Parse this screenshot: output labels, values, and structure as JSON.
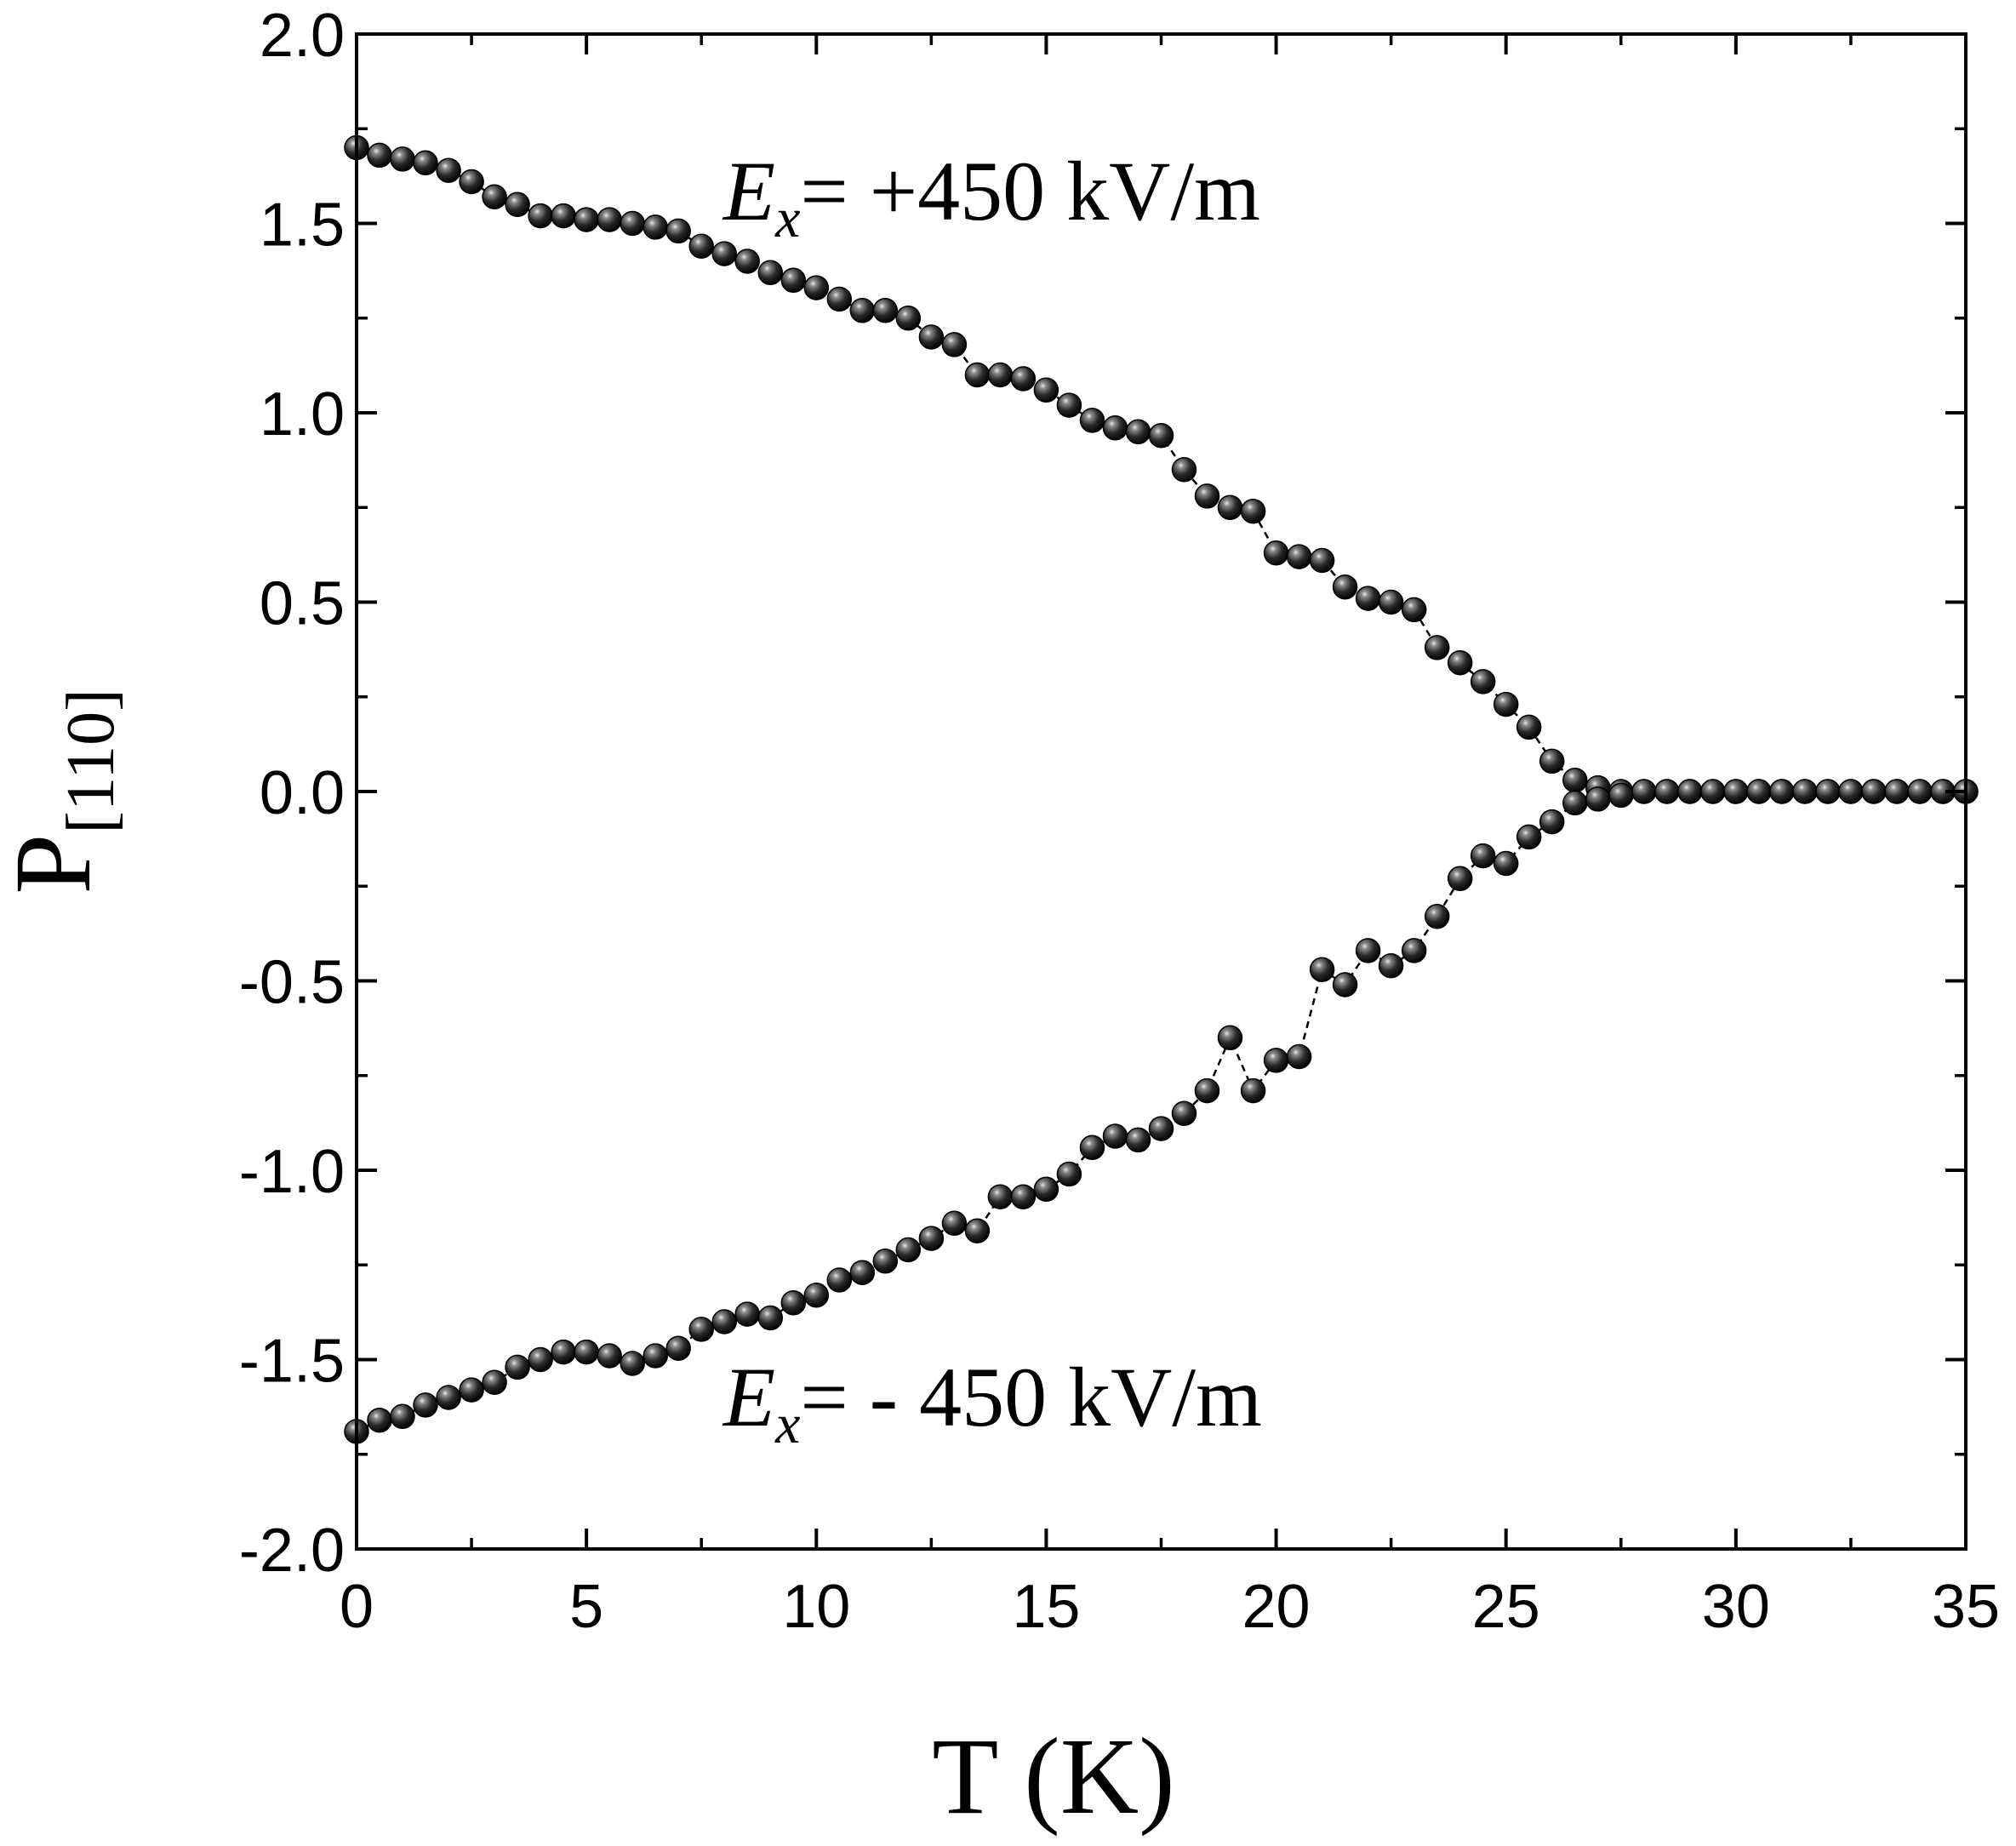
{
  "chart_data": {
    "type": "scatter",
    "xlabel": "T (K)",
    "ylabel": "P",
    "ylabel_subscript": "[110]",
    "xlim": [
      0,
      35
    ],
    "ylim": [
      -2.0,
      2.0
    ],
    "xticks": [
      0,
      5,
      10,
      15,
      20,
      25,
      30,
      35
    ],
    "xtick_labels": [
      "0",
      "5",
      "10",
      "15",
      "20",
      "25",
      "30",
      "35"
    ],
    "yticks": [
      -2.0,
      -1.5,
      -1.0,
      -0.5,
      0.0,
      0.5,
      1.0,
      1.5,
      2.0
    ],
    "ytick_labels": [
      "-2.0",
      "-1.5",
      "-1.0",
      "-0.5",
      "0.0",
      "0.5",
      "1.0",
      "1.5",
      "2.0"
    ],
    "grid": false,
    "marker": "sphere",
    "marker_color": "#111111",
    "line_style": "dashed",
    "annotations": [
      {
        "series": "positive",
        "symbol": "E",
        "subscript": "x",
        "text": "= +450 kV/m",
        "x": 8.0,
        "y": 1.5
      },
      {
        "series": "negative",
        "symbol": "E",
        "subscript": "x",
        "text": "= - 450 kV/m",
        "x": 7.9,
        "y": -1.75
      }
    ],
    "series": [
      {
        "name": "E_x = +450 kV/m",
        "x": [
          0,
          0.5,
          1,
          1.5,
          2,
          2.5,
          3,
          3.5,
          4,
          4.5,
          5,
          5.5,
          6,
          6.5,
          7,
          7.5,
          8,
          8.5,
          9,
          9.5,
          10,
          10.5,
          11,
          11.5,
          12,
          12.5,
          13,
          13.5,
          14,
          14.5,
          15,
          15.5,
          16,
          16.5,
          17,
          17.5,
          18,
          18.5,
          19,
          19.5,
          20,
          20.5,
          21,
          21.5,
          22,
          22.5,
          23,
          23.5,
          24,
          24.5,
          25,
          25.5,
          26,
          26.5,
          27,
          27.5,
          28,
          28.5,
          29,
          29.5,
          30,
          30.5,
          31,
          31.5,
          32,
          32.5,
          33,
          33.5,
          34,
          34.5,
          35
        ],
        "y": [
          1.7,
          1.68,
          1.67,
          1.66,
          1.64,
          1.61,
          1.57,
          1.55,
          1.52,
          1.52,
          1.51,
          1.51,
          1.5,
          1.49,
          1.48,
          1.44,
          1.42,
          1.4,
          1.37,
          1.35,
          1.33,
          1.3,
          1.27,
          1.27,
          1.25,
          1.2,
          1.18,
          1.1,
          1.1,
          1.09,
          1.06,
          1.02,
          0.98,
          0.96,
          0.95,
          0.94,
          0.85,
          0.78,
          0.75,
          0.74,
          0.63,
          0.62,
          0.61,
          0.54,
          0.51,
          0.5,
          0.48,
          0.38,
          0.34,
          0.29,
          0.23,
          0.17,
          0.08,
          0.03,
          0.01,
          0.0,
          0.0,
          0.0,
          0.0,
          0.0,
          0.0,
          0.0,
          0.0,
          0.0,
          0.0,
          0.0,
          0.0,
          0.0,
          0.0,
          0.0,
          0.0
        ]
      },
      {
        "name": "E_x = - 450 kV/m",
        "x": [
          0,
          0.5,
          1,
          1.5,
          2,
          2.5,
          3,
          3.5,
          4,
          4.5,
          5,
          5.5,
          6,
          6.5,
          7,
          7.5,
          8,
          8.5,
          9,
          9.5,
          10,
          10.5,
          11,
          11.5,
          12,
          12.5,
          13,
          13.5,
          14,
          14.5,
          15,
          15.5,
          16,
          16.5,
          17,
          17.5,
          18,
          18.5,
          19,
          19.5,
          20,
          20.5,
          21,
          21.5,
          22,
          22.5,
          23,
          23.5,
          24,
          24.5,
          25,
          25.5,
          26,
          26.5,
          27,
          27.5,
          28,
          28.5,
          29,
          29.5,
          30,
          30.5,
          31,
          31.5,
          32,
          32.5,
          33,
          33.5,
          34,
          34.5,
          35
        ],
        "y": [
          -1.69,
          -1.66,
          -1.65,
          -1.62,
          -1.6,
          -1.58,
          -1.56,
          -1.52,
          -1.5,
          -1.48,
          -1.48,
          -1.49,
          -1.51,
          -1.49,
          -1.47,
          -1.42,
          -1.4,
          -1.38,
          -1.39,
          -1.35,
          -1.33,
          -1.29,
          -1.27,
          -1.24,
          -1.21,
          -1.18,
          -1.14,
          -1.16,
          -1.07,
          -1.07,
          -1.05,
          -1.01,
          -0.94,
          -0.91,
          -0.92,
          -0.89,
          -0.85,
          -0.79,
          -0.65,
          -0.79,
          -0.71,
          -0.7,
          -0.47,
          -0.51,
          -0.42,
          -0.46,
          -0.42,
          -0.33,
          -0.23,
          -0.17,
          -0.19,
          -0.12,
          -0.08,
          -0.03,
          -0.02,
          -0.01,
          0.0,
          0.0,
          0.0,
          0.0,
          0.0,
          0.0,
          0.0,
          0.0,
          0.0,
          0.0,
          0.0,
          0.0,
          0.0,
          0.0,
          0.0
        ]
      }
    ]
  }
}
